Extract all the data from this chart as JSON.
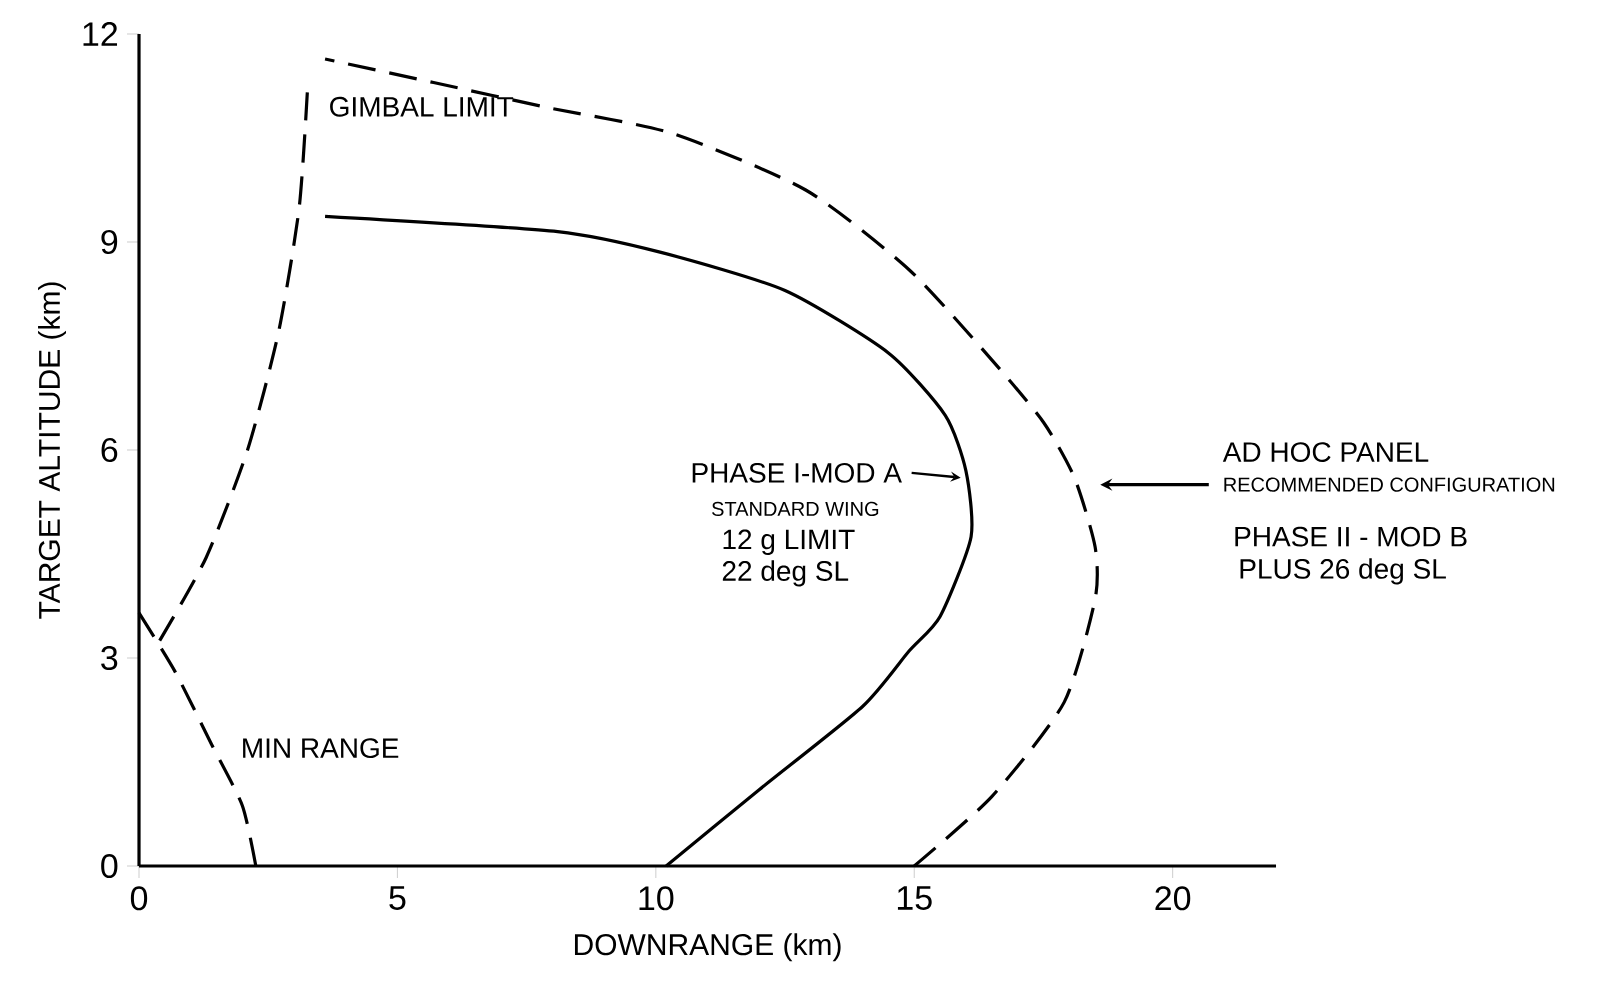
{
  "chart_data": {
    "type": "line",
    "xlabel": "DOWNRANGE (km)",
    "ylabel": "TARGET ALTITUDE (km)",
    "xlim": [
      0,
      22
    ],
    "ylim": [
      0,
      12
    ],
    "xticks": [
      0,
      5,
      10,
      15,
      20
    ],
    "yticks": [
      0,
      3,
      6,
      9,
      12
    ],
    "grid": false,
    "marker": "none",
    "series": [
      {
        "color": "#000000",
        "line_style": "dashed",
        "x": [
          0,
          0.7,
          1.4,
          2.0,
          2.26
        ],
        "values": [
          3.65,
          2.8,
          1.76,
          0.87,
          0
        ]
      },
      {
        "color": "#000000",
        "line_style": "dashed",
        "x": [
          0.4,
          1.3,
          2.1,
          2.7,
          3.1,
          3.26
        ],
        "values": [
          3.25,
          4.45,
          6.0,
          7.7,
          9.5,
          11.2
        ]
      },
      {
        "color": "#000000",
        "line_style": "solid",
        "x": [
          10.2,
          12.0,
          14.0,
          14.9,
          15.5,
          16.1,
          16.0,
          15.6,
          14.5,
          12.5,
          10.1,
          8.1,
          3.6
        ],
        "values": [
          0,
          1.1,
          2.3,
          3.1,
          3.6,
          4.75,
          5.7,
          6.5,
          7.4,
          8.3,
          8.85,
          9.15,
          9.37
        ]
      },
      {
        "color": "#000000",
        "line_style": "dashed",
        "x": [
          15.0,
          16.5,
          17.9,
          18.5,
          18.5,
          18.1,
          17.5,
          16.5,
          14.9,
          12.9,
          10.3,
          7.9,
          5.7,
          3.6
        ],
        "values": [
          0,
          1.0,
          2.36,
          3.85,
          4.6,
          5.6,
          6.4,
          7.3,
          8.6,
          9.75,
          10.57,
          10.94,
          11.3,
          11.64
        ]
      }
    ],
    "annotations": [
      "GIMBAL LIMIT",
      "MIN RANGE",
      "PHASE I-MOD A",
      "STANDARD WING",
      "12 g LIMIT",
      "22 deg SL",
      "AD HOC PANEL",
      "RECOMMENDED CONFIGURATION",
      "PHASE II - MOD B",
      "PLUS 26 deg SL"
    ]
  }
}
